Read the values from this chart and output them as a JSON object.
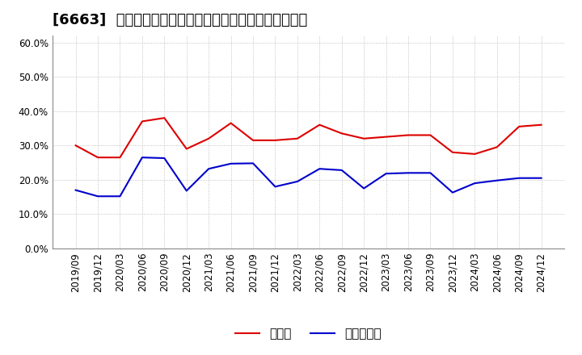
{
  "title": "[6663]  現預金、有利子負債の総資産に対する比率の推移",
  "x_labels": [
    "2019/09",
    "2019/12",
    "2020/03",
    "2020/06",
    "2020/09",
    "2020/12",
    "2021/03",
    "2021/06",
    "2021/09",
    "2021/12",
    "2022/03",
    "2022/06",
    "2022/09",
    "2022/12",
    "2023/03",
    "2023/06",
    "2023/09",
    "2023/12",
    "2024/03",
    "2024/06",
    "2024/09",
    "2024/12"
  ],
  "cash_values": [
    0.3,
    0.265,
    0.265,
    0.37,
    0.38,
    0.29,
    0.32,
    0.365,
    0.315,
    0.315,
    0.32,
    0.36,
    0.335,
    0.32,
    0.325,
    0.33,
    0.33,
    0.28,
    0.275,
    0.295,
    0.355,
    0.36
  ],
  "debt_values": [
    0.17,
    0.152,
    0.152,
    0.265,
    0.263,
    0.168,
    0.232,
    0.247,
    0.248,
    0.18,
    0.195,
    0.232,
    0.228,
    0.175,
    0.218,
    0.22,
    0.22,
    0.163,
    0.19,
    0.198,
    0.205,
    0.205
  ],
  "cash_color": "#dd0000",
  "debt_color": "#0000cc",
  "ylim": [
    0.0,
    0.62
  ],
  "yticks": [
    0.0,
    0.1,
    0.2,
    0.3,
    0.4,
    0.5,
    0.6
  ],
  "legend_cash": "現預金",
  "legend_debt": "有利子負債",
  "bg_color": "#ffffff",
  "plot_bg_color": "#ffffff",
  "grid_color": "#aaaaaa",
  "title_fontsize": 13,
  "legend_fontsize": 11,
  "tick_fontsize": 8.5
}
